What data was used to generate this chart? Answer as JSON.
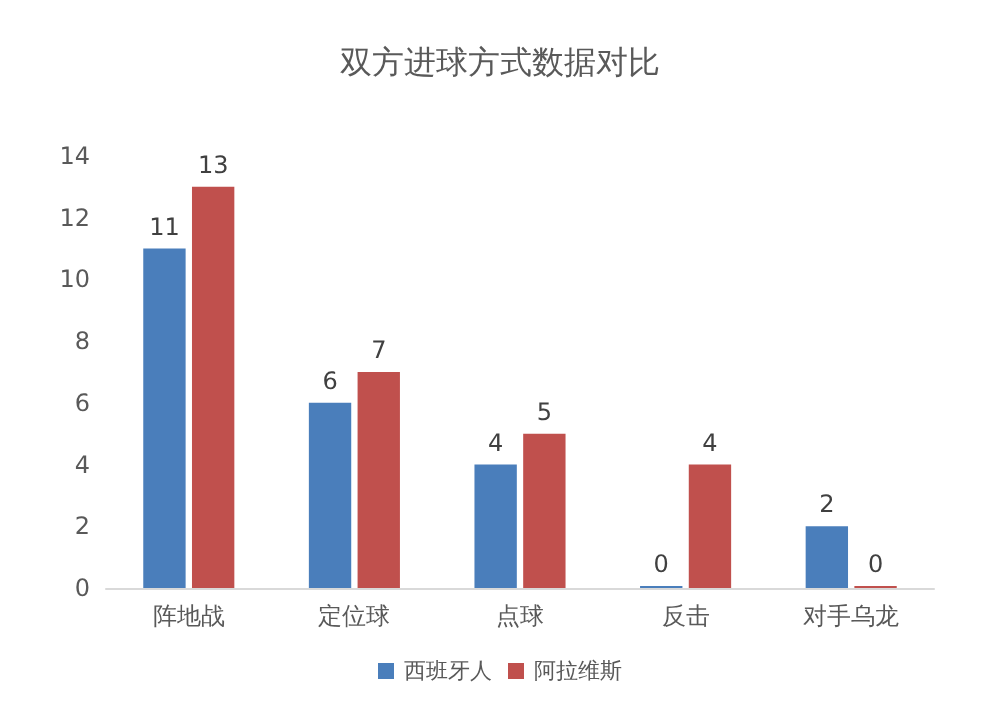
{
  "chart_data": {
    "type": "bar",
    "title": "双方进球方式数据对比",
    "categories": [
      "阵地战",
      "定位球",
      "点球",
      "反击",
      "对手乌龙"
    ],
    "series": [
      {
        "name": "西班牙人",
        "color": "#4a7ebb",
        "values": [
          11,
          6,
          4,
          0,
          2
        ]
      },
      {
        "name": "阿拉维斯",
        "color": "#c0504d",
        "values": [
          13,
          7,
          5,
          4,
          0
        ]
      }
    ],
    "ylim": [
      0,
      14
    ],
    "yticks": [
      0,
      2,
      4,
      6,
      8,
      10,
      12,
      14
    ],
    "grid": false,
    "legend": "bottom",
    "data_labels": true
  }
}
